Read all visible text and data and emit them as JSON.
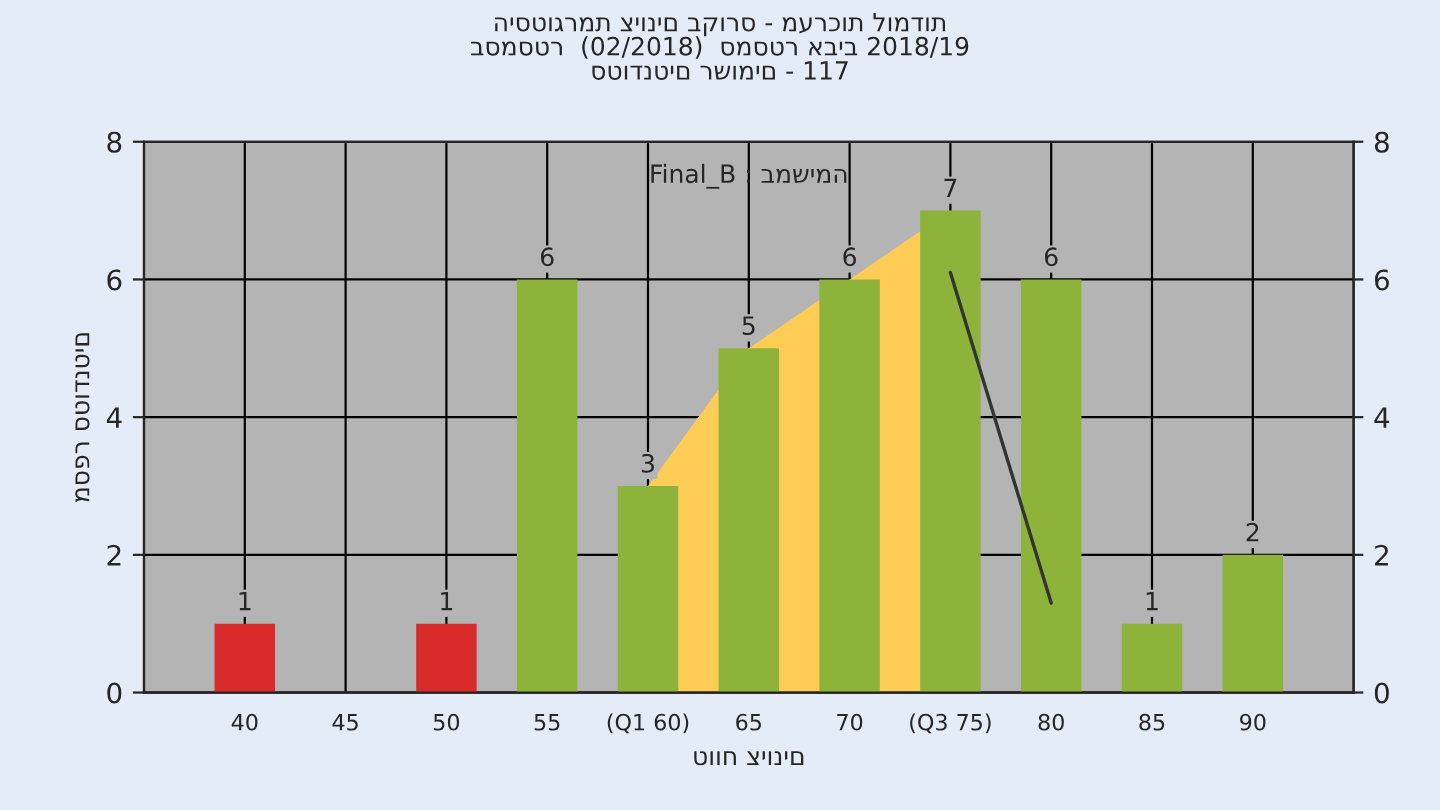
{
  "chart_data": {
    "type": "bar",
    "title": "היסטוגרמת ציונים בקורס - מערכות לומדות\nבסמסטר  (02/2018)  סמסטר אביב 2018/19\nסטודנטים רשומים - 117",
    "xlabel": "טווח ציונים",
    "ylabel": "מספר סטודנטים",
    "annotations": [
      "Final_B : במשימה"
    ],
    "categories": [
      "40",
      "45",
      "50",
      "55",
      "(Q1 60)",
      "65",
      "70",
      "(Q3 75)",
      "80",
      "85",
      "90"
    ],
    "series": [
      {
        "type": "area",
        "color": "#ffcc55",
        "values": [
          null,
          null,
          null,
          null,
          3,
          5,
          6,
          7,
          null,
          null,
          null
        ]
      },
      {
        "type": "line",
        "color": "#333333",
        "values": [
          null,
          null,
          null,
          null,
          null,
          null,
          null,
          6.1,
          1.3,
          null,
          null
        ]
      },
      {
        "colors": [
          "#d92b2b",
          "#d92b2b",
          "#d92b2b",
          "#8db33a",
          "#8db33a",
          "#8db33a",
          "#8db33a",
          "#8db33a",
          "#8db33a",
          "#8db33a",
          "#8db33a"
        ],
        "values": [
          1,
          0,
          1,
          6,
          3,
          5,
          6,
          7,
          6,
          1,
          2
        ],
        "value_labels": [
          "1",
          null,
          "1",
          "6",
          "3",
          "5",
          "6",
          "7",
          "6",
          "1",
          "2"
        ]
      }
    ],
    "ylim": [
      0,
      8
    ],
    "yticks": [
      0,
      2,
      4,
      6,
      8
    ],
    "y2lim": [
      0,
      8
    ],
    "y2ticks": [
      0,
      2,
      4,
      6,
      8
    ],
    "grid": true,
    "legend": false
  }
}
